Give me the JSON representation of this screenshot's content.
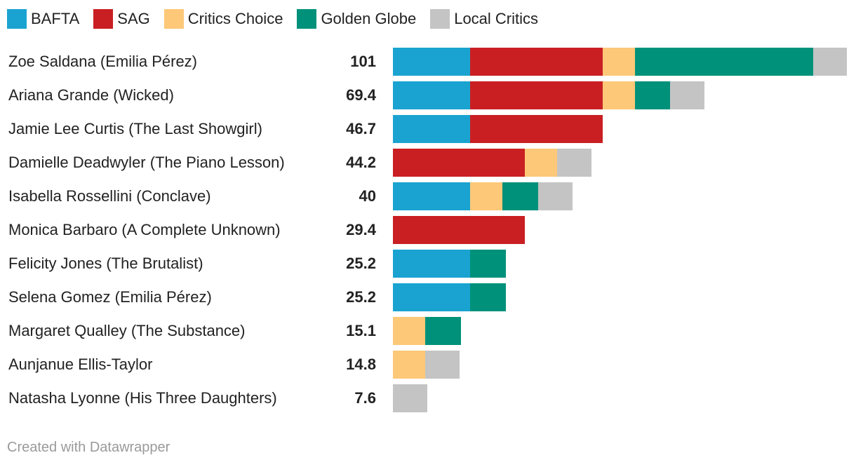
{
  "colors": {
    "BAFTA": "#1aa3d1",
    "SAG": "#c91f22",
    "Critics Choice": "#fdc878",
    "Golden Globe": "#00917a",
    "Local Critics": "#c4c4c4"
  },
  "chart_data": {
    "type": "bar",
    "orientation": "horizontal",
    "stacked": true,
    "title": "",
    "legend_position": "top-left",
    "legend": [
      "BAFTA",
      "SAG",
      "Critics Choice",
      "Golden Globe",
      "Local Critics"
    ],
    "categories": [
      "Zoe Saldana (Emilia Pérez)",
      "Ariana Grande (Wicked)",
      "Jamie Lee Curtis (The Last Showgirl)",
      "Damielle Deadwyler (The Piano Lesson)",
      "Isabella Rossellini (Conclave)",
      "Monica Barbaro (A Complete Unknown)",
      "Felicity Jones (The Brutalist)",
      "Selena Gomez (Emilia Pérez)",
      "Margaret Qualley (The Substance)",
      "Aunjanue Ellis-Taylor",
      "Natasha Lyonne (His Three Daughters)"
    ],
    "totals": [
      "101",
      "69.4",
      "46.7",
      "44.2",
      "40",
      "29.4",
      "25.2",
      "25.2",
      "15.1",
      "14.8",
      "7.6"
    ],
    "series": [
      {
        "name": "BAFTA",
        "values": [
          17.1,
          17.1,
          17.1,
          0,
          17.1,
          0,
          17.1,
          17.1,
          0,
          0,
          0
        ]
      },
      {
        "name": "SAG",
        "values": [
          29.6,
          29.6,
          29.6,
          29.4,
          0,
          29.4,
          0,
          0,
          0,
          0,
          0
        ]
      },
      {
        "name": "Critics Choice",
        "values": [
          7.2,
          7.2,
          0,
          7.2,
          7.2,
          0,
          0,
          0,
          7.2,
          7.2,
          0
        ]
      },
      {
        "name": "Golden Globe",
        "values": [
          39.7,
          7.8,
          0,
          0,
          8.1,
          0,
          8.1,
          8.1,
          7.9,
          0,
          0
        ]
      },
      {
        "name": "Local Critics",
        "values": [
          7.4,
          7.7,
          0,
          7.6,
          7.6,
          0,
          0,
          0,
          0,
          7.6,
          7.6
        ]
      }
    ],
    "xlim": [
      0,
      101.5
    ]
  },
  "footer": {
    "credit": "Created with Datawrapper"
  }
}
